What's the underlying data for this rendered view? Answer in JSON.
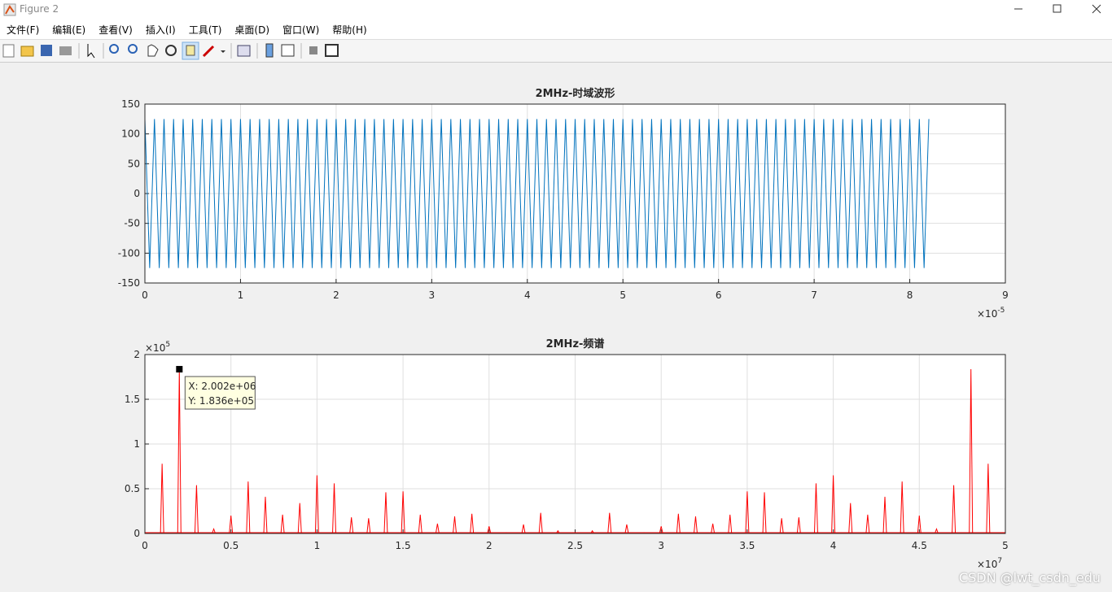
{
  "window": {
    "title": "Figure 2",
    "menu": [
      "文件(F)",
      "编辑(E)",
      "查看(V)",
      "插入(I)",
      "工具(T)",
      "桌面(D)",
      "窗口(W)",
      "帮助(H)"
    ],
    "watermark": "CSDN @lwt_csdn_edu"
  },
  "chart_data": [
    {
      "type": "line",
      "title": "2MHz-时域波形",
      "color": "#0072bd",
      "grid": true,
      "x_multiplier": {
        "base": "×10",
        "exponent": "-5"
      },
      "xlim": [
        0,
        9
      ],
      "xticks": [
        0,
        1,
        2,
        3,
        4,
        5,
        6,
        7,
        8,
        9
      ],
      "ylim": [
        -150,
        150
      ],
      "yticks": [
        -150,
        -100,
        -50,
        0,
        50,
        100,
        150
      ],
      "x": [
        0,
        0.05,
        0.1,
        0.15,
        0.2,
        0.25,
        0.3,
        0.35,
        0.4,
        0.45,
        0.5,
        0.55,
        0.6,
        0.65,
        0.7,
        0.75,
        0.8,
        0.85,
        0.9,
        0.95,
        1,
        1.05,
        1.1,
        1.15,
        1.2,
        1.25,
        1.3,
        1.35,
        1.4,
        1.45,
        1.5,
        1.55,
        1.6,
        1.65,
        1.7,
        1.75,
        1.8,
        1.85,
        1.9,
        1.95,
        2,
        2.05,
        2.1,
        2.15,
        2.2,
        2.25,
        2.3,
        2.35,
        2.4,
        2.45,
        2.5,
        2.55,
        2.6,
        2.65,
        2.7,
        2.75,
        2.8,
        2.85,
        2.9,
        2.95,
        3,
        3.05,
        3.1,
        3.15,
        3.2,
        3.25,
        3.3,
        3.35,
        3.4,
        3.45,
        3.5,
        3.55,
        3.6,
        3.65,
        3.7,
        3.75,
        3.8,
        3.85,
        3.9,
        3.95,
        4,
        4.05,
        4.1,
        4.15,
        4.2,
        4.25,
        4.3,
        4.35,
        4.4,
        4.45,
        4.5,
        4.55,
        4.6,
        4.65,
        4.7,
        4.75,
        4.8,
        4.85,
        4.9,
        4.95,
        5,
        5.05,
        5.1,
        5.15,
        5.2,
        5.25,
        5.3,
        5.35,
        5.4,
        5.45,
        5.5,
        5.55,
        5.6,
        5.65,
        5.7,
        5.75,
        5.8,
        5.85,
        5.9,
        5.95,
        6,
        6.05,
        6.1,
        6.15,
        6.2,
        6.25,
        6.3,
        6.35,
        6.4,
        6.45,
        6.5,
        6.55,
        6.6,
        6.65,
        6.7,
        6.75,
        6.8,
        6.85,
        6.9,
        6.95,
        7,
        7.05,
        7.1,
        7.15,
        7.2,
        7.25,
        7.3,
        7.35,
        7.4,
        7.45,
        7.5,
        7.55,
        7.6,
        7.65,
        7.7,
        7.75,
        7.8,
        7.85,
        7.9,
        7.95,
        8,
        8.05,
        8.1,
        8.15,
        8.2
      ],
      "values": [
        125,
        -125,
        125,
        -125,
        125,
        -125,
        125,
        -125,
        125,
        -125,
        125,
        -125,
        125,
        -125,
        125,
        -125,
        125,
        -125,
        125,
        -125,
        125,
        -125,
        125,
        -125,
        125,
        -125,
        125,
        -125,
        125,
        -125,
        125,
        -125,
        125,
        -125,
        125,
        -125,
        125,
        -125,
        125,
        -125,
        125,
        -125,
        125,
        -125,
        125,
        -125,
        125,
        -125,
        125,
        -125,
        125,
        -125,
        125,
        -125,
        125,
        -125,
        125,
        -125,
        125,
        -125,
        125,
        -125,
        125,
        -125,
        125,
        -125,
        125,
        -125,
        125,
        -125,
        125,
        -125,
        125,
        -125,
        125,
        -125,
        125,
        -125,
        125,
        -125,
        125,
        -125,
        125,
        -125,
        125,
        -125,
        125,
        -125,
        125,
        -125,
        125,
        -125,
        125,
        -125,
        125,
        -125,
        125,
        -125,
        125,
        -125,
        125,
        -125,
        125,
        -125,
        125,
        -125,
        125,
        -125,
        125,
        -125,
        125,
        -125,
        125,
        -125,
        125,
        -125,
        125,
        -125,
        125,
        -125,
        125,
        -125,
        125,
        -125,
        125,
        -125,
        125,
        -125,
        125,
        -125,
        125,
        -125,
        125,
        -125,
        125,
        -125,
        125,
        -125,
        125,
        -125,
        125,
        -125,
        125,
        -125,
        125,
        -125,
        125,
        -125,
        125,
        -125,
        125,
        -125,
        125,
        -125,
        125,
        -125,
        125,
        -125,
        125,
        -125,
        125,
        -125,
        125,
        -125,
        125
      ]
    },
    {
      "type": "stem",
      "title": "2MHz-频谱",
      "color": "#ff0000",
      "grid": true,
      "x_multiplier": {
        "base": "×10",
        "exponent": "7"
      },
      "y_multiplier": {
        "base": "×10",
        "exponent": "5"
      },
      "xlim": [
        0,
        5
      ],
      "xticks": [
        0,
        0.5,
        1,
        1.5,
        2,
        2.5,
        3,
        3.5,
        4,
        4.5,
        5
      ],
      "ylim": [
        0,
        2
      ],
      "yticks": [
        0,
        0.5,
        1,
        1.5,
        2
      ],
      "x": [
        0.1,
        0.2,
        0.3,
        0.4,
        0.5,
        0.6,
        0.7,
        0.8,
        0.9,
        1,
        1.1,
        1.2,
        1.3,
        1.4,
        1.5,
        1.6,
        1.7,
        1.8,
        1.9,
        2,
        2.1,
        2.2,
        2.3,
        2.4,
        2.5,
        2.6,
        2.7,
        2.8,
        2.9,
        3,
        3.1,
        3.2,
        3.3,
        3.4,
        3.5,
        3.6,
        3.7,
        3.8,
        3.9,
        4,
        4.1,
        4.2,
        4.3,
        4.4,
        4.5,
        4.6,
        4.7,
        4.8,
        4.9
      ],
      "values": [
        0.78,
        1.836,
        0.54,
        0.05,
        0.2,
        0.58,
        0.41,
        0.21,
        0.34,
        0.65,
        0.56,
        0.18,
        0.17,
        0.46,
        0.47,
        0.21,
        0.11,
        0.19,
        0.22,
        0.08,
        0.01,
        0.1,
        0.23,
        0.03,
        0.01,
        0.03,
        0.23,
        0.1,
        0.01,
        0.08,
        0.22,
        0.19,
        0.11,
        0.21,
        0.47,
        0.46,
        0.17,
        0.18,
        0.56,
        0.65,
        0.34,
        0.21,
        0.41,
        0.58,
        0.2,
        0.05,
        0.54,
        1.836,
        0.78
      ],
      "datatip": {
        "x": 0.2002,
        "y": 1.836,
        "lines": [
          "X: 2.002e+06",
          "Y: 1.836e+05"
        ]
      }
    }
  ]
}
